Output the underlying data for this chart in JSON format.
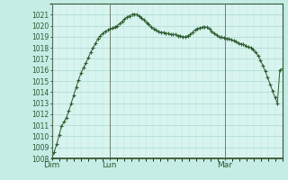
{
  "background_color": "#c5ede6",
  "plot_bg_color": "#d8f4ef",
  "grid_color_major": "#a8d8d0",
  "grid_color_minor": "#b8e4de",
  "line_color": "#2d5e30",
  "marker_color": "#2d5e30",
  "ylim": [
    1008,
    1022
  ],
  "ytick_min": 1008,
  "ytick_max": 1021,
  "xtick_labels": [
    "Dim",
    "Lun",
    "Mar"
  ],
  "xtick_positions": [
    0,
    24,
    72
  ],
  "total_hours": 96,
  "ylabel_fontsize": 5.5,
  "xlabel_fontsize": 6.5,
  "values": [
    1008.0,
    1008.6,
    1009.3,
    1010.1,
    1010.9,
    1011.3,
    1011.7,
    1012.3,
    1013.0,
    1013.7,
    1014.4,
    1015.1,
    1015.7,
    1016.2,
    1016.6,
    1017.1,
    1017.6,
    1018.0,
    1018.4,
    1018.8,
    1019.1,
    1019.3,
    1019.5,
    1019.6,
    1019.7,
    1019.8,
    1019.9,
    1020.0,
    1020.2,
    1020.4,
    1020.6,
    1020.8,
    1020.9,
    1021.0,
    1021.05,
    1021.0,
    1020.9,
    1020.7,
    1020.5,
    1020.3,
    1020.1,
    1019.9,
    1019.7,
    1019.6,
    1019.5,
    1019.4,
    1019.4,
    1019.3,
    1019.3,
    1019.2,
    1019.2,
    1019.2,
    1019.1,
    1019.1,
    1019.0,
    1019.0,
    1019.1,
    1019.2,
    1019.4,
    1019.6,
    1019.75,
    1019.8,
    1019.85,
    1019.9,
    1019.85,
    1019.7,
    1019.5,
    1019.3,
    1019.15,
    1019.0,
    1018.95,
    1018.9,
    1018.85,
    1018.8,
    1018.75,
    1018.65,
    1018.55,
    1018.45,
    1018.35,
    1018.3,
    1018.2,
    1018.1,
    1018.0,
    1017.85,
    1017.6,
    1017.3,
    1016.9,
    1016.4,
    1015.9,
    1015.3,
    1014.7,
    1014.1,
    1013.5,
    1013.0,
    1016.0,
    1016.1
  ]
}
